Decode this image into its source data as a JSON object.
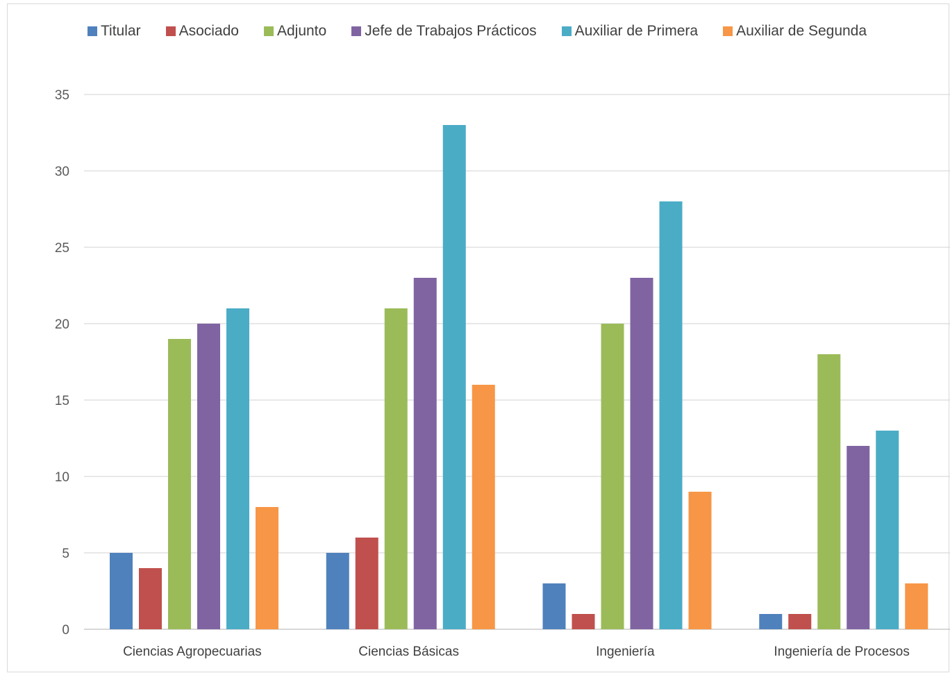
{
  "chart_data": {
    "type": "bar",
    "categories": [
      "Ciencias Agropecuarias",
      "Ciencias Básicas",
      "Ingeniería",
      "Ingeniería de Procesos"
    ],
    "series": [
      {
        "name": "Titular",
        "color": "#4f81bd",
        "values": [
          5,
          5,
          3,
          1
        ]
      },
      {
        "name": "Asociado",
        "color": "#c0504d",
        "values": [
          4,
          6,
          1,
          1
        ]
      },
      {
        "name": "Adjunto",
        "color": "#9bbb59",
        "values": [
          19,
          21,
          20,
          18
        ]
      },
      {
        "name": "Jefe de Trabajos Prácticos",
        "color": "#8064a2",
        "values": [
          20,
          23,
          23,
          12
        ]
      },
      {
        "name": "Auxiliar de Primera",
        "color": "#4bacc6",
        "values": [
          21,
          33,
          28,
          13
        ]
      },
      {
        "name": "Auxiliar de Segunda",
        "color": "#f79646",
        "values": [
          8,
          16,
          9,
          3
        ]
      }
    ],
    "title": "",
    "xlabel": "",
    "ylabel": "",
    "ylim": [
      0,
      35
    ],
    "yticks": [
      "0",
      "5",
      "10",
      "15",
      "20",
      "25",
      "30",
      "35"
    ],
    "grid": true,
    "legend_position": "top"
  }
}
